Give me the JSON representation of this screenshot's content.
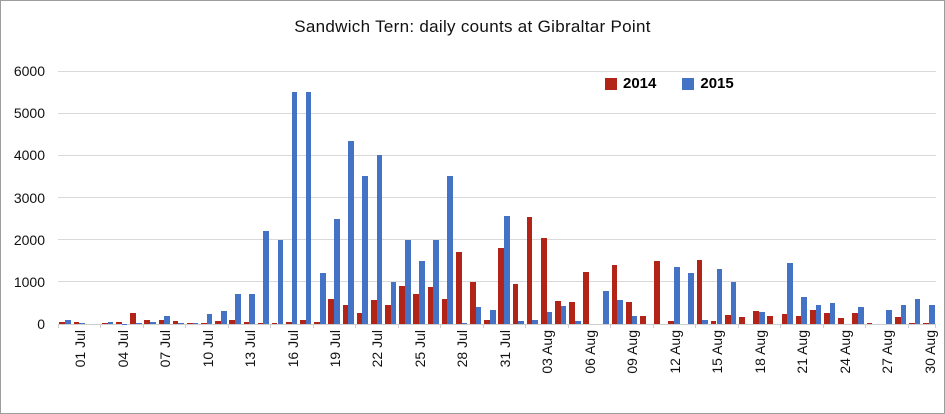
{
  "chart_data": {
    "type": "bar",
    "title": "Sandwich Tern: daily counts at Gibraltar Point",
    "xlabel": "",
    "ylabel": "",
    "ylim": [
      0,
      6000
    ],
    "ytick_step": 1000,
    "grid": true,
    "legend_position": "top-right-inside",
    "x_label_every": 3,
    "categories": [
      "01 Jul",
      "02 Jul",
      "03 Jul",
      "04 Jul",
      "05 Jul",
      "06 Jul",
      "07 Jul",
      "08 Jul",
      "09 Jul",
      "10 Jul",
      "11 Jul",
      "12 Jul",
      "13 Jul",
      "14 Jul",
      "15 Jul",
      "16 Jul",
      "17 Jul",
      "18 Jul",
      "19 Jul",
      "20 Jul",
      "21 Jul",
      "22 Jul",
      "23 Jul",
      "24 Jul",
      "25 Jul",
      "26 Jul",
      "27 Jul",
      "28 Jul",
      "29 Jul",
      "30 Jul",
      "31 Jul",
      "01 Aug",
      "02 Aug",
      "03 Aug",
      "04 Aug",
      "05 Aug",
      "06 Aug",
      "07 Aug",
      "08 Aug",
      "09 Aug",
      "10 Aug",
      "11 Aug",
      "12 Aug",
      "13 Aug",
      "14 Aug",
      "15 Aug",
      "16 Aug",
      "17 Aug",
      "18 Aug",
      "19 Aug",
      "20 Aug",
      "21 Aug",
      "22 Aug",
      "23 Aug",
      "24 Aug",
      "25 Aug",
      "26 Aug",
      "27 Aug",
      "28 Aug",
      "29 Aug",
      "30 Aug",
      "31 Aug"
    ],
    "series": [
      {
        "name": "2014",
        "color": "#B22318",
        "values": [
          50,
          40,
          0,
          25,
          50,
          270,
          100,
          90,
          60,
          30,
          30,
          80,
          100,
          50,
          30,
          25,
          50,
          100,
          50,
          600,
          450,
          260,
          570,
          440,
          900,
          700,
          870,
          600,
          1700,
          1000,
          100,
          1800,
          950,
          2530,
          2030,
          550,
          520,
          1230,
          0,
          1410,
          520,
          200,
          1500,
          60,
          0,
          1530,
          80,
          220,
          170,
          300,
          190,
          230,
          180,
          340,
          260,
          140,
          250,
          30,
          0,
          170,
          30,
          30
        ]
      },
      {
        "name": "2015",
        "color": "#4472C4",
        "values": [
          90,
          25,
          0,
          50,
          10,
          25,
          40,
          190,
          15,
          25,
          230,
          320,
          700,
          700,
          2200,
          2000,
          5500,
          5500,
          1200,
          2500,
          4350,
          3500,
          4000,
          1000,
          2000,
          1500,
          2000,
          3500,
          30,
          400,
          330,
          2550,
          60,
          90,
          290,
          420,
          60,
          0,
          780,
          580,
          190,
          0,
          0,
          1350,
          1200,
          100,
          1300,
          1000,
          0,
          280,
          0,
          1450,
          640,
          440,
          500,
          0,
          400,
          0,
          330,
          450,
          600,
          450
        ]
      }
    ]
  }
}
